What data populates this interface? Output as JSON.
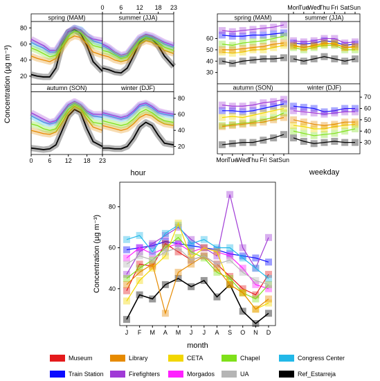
{
  "colors": {
    "Museum": "#e41a1c",
    "Library": "#e68a00",
    "CETA": "#f2d600",
    "Chapel": "#7fe01a",
    "Congress Center": "#22b8e8",
    "Train Station": "#0b0bff",
    "Firefighters": "#a03ad6",
    "Morgados": "#ff20ff",
    "UA": "#b5b5b5",
    "Ref_Estarreja": "#000000"
  },
  "legend": [
    "Museum",
    "Library",
    "CETA",
    "Chapel",
    "Congress Center",
    "Train Station",
    "Firefighters",
    "Morgados",
    "UA",
    "Ref_Estarreja"
  ],
  "chart_data": [
    {
      "id": "hour",
      "type": "line",
      "xlabel": "hour",
      "ylabel": "Concentration (µg m⁻³)",
      "x_ticks": [
        0,
        6,
        12,
        18,
        23
      ],
      "y_ticks": [
        20,
        40,
        60,
        80
      ],
      "ylim": [
        10,
        88
      ],
      "panels": [
        "spring (MAM)",
        "summer (JJA)",
        "autumn (SON)",
        "winter (DJF)"
      ],
      "x": [
        0,
        2,
        4,
        6,
        8,
        10,
        12,
        14,
        16,
        18,
        20,
        23
      ],
      "series": {
        "spring (MAM)": [
          {
            "name": "Ref_Estarreja",
            "values": [
              22,
              20,
              19,
              19,
              30,
              60,
              75,
              78,
              73,
              58,
              38,
              26
            ]
          },
          {
            "name": "Congress Center",
            "values": [
              62,
              58,
              55,
              50,
              50,
              62,
              74,
              80,
              78,
              70,
              64,
              60
            ]
          },
          {
            "name": "Firefighters",
            "values": [
              66,
              62,
              58,
              52,
              52,
              64,
              75,
              80,
              77,
              70,
              66,
              64
            ]
          },
          {
            "name": "Library",
            "values": [
              45,
              42,
              40,
              38,
              42,
              55,
              66,
              70,
              68,
              60,
              50,
              46
            ]
          },
          {
            "name": "Chapel",
            "values": [
              55,
              52,
              48,
              44,
              46,
              58,
              70,
              76,
              74,
              66,
              58,
              55
            ]
          }
        ],
        "summer (JJA)": [
          {
            "name": "Ref_Estarreja",
            "values": [
              30,
              28,
              25,
              24,
              30,
              45,
              62,
              68,
              66,
              58,
              45,
              32
            ]
          },
          {
            "name": "Congress Center",
            "values": [
              58,
              54,
              48,
              44,
              46,
              56,
              66,
              70,
              68,
              64,
              60,
              56
            ]
          },
          {
            "name": "Firefighters",
            "values": [
              60,
              56,
              50,
              46,
              48,
              58,
              68,
              72,
              70,
              66,
              62,
              58
            ]
          },
          {
            "name": "Library",
            "values": [
              46,
              44,
              40,
              38,
              40,
              50,
              60,
              64,
              62,
              58,
              52,
              48
            ]
          },
          {
            "name": "Chapel",
            "values": [
              52,
              50,
              46,
              42,
              44,
              54,
              64,
              68,
              66,
              62,
              56,
              52
            ]
          }
        ],
        "autumn (SON)": [
          {
            "name": "Ref_Estarreja",
            "values": [
              18,
              17,
              16,
              17,
              22,
              40,
              58,
              66,
              62,
              42,
              26,
              20
            ]
          },
          {
            "name": "Congress Center",
            "values": [
              58,
              54,
              50,
              48,
              50,
              60,
              70,
              74,
              70,
              62,
              58,
              56
            ]
          },
          {
            "name": "Firefighters",
            "values": [
              62,
              58,
              54,
              50,
              52,
              62,
              72,
              76,
              72,
              64,
              60,
              60
            ]
          },
          {
            "name": "Library",
            "values": [
              40,
              38,
              36,
              35,
              38,
              50,
              62,
              70,
              66,
              54,
              44,
              40
            ]
          },
          {
            "name": "Chapel",
            "values": [
              48,
              46,
              42,
              40,
              42,
              54,
              66,
              72,
              68,
              58,
              50,
              48
            ]
          }
        ],
        "winter (DJF)": [
          {
            "name": "Ref_Estarreja",
            "values": [
              18,
              18,
              17,
              17,
              20,
              30,
              44,
              50,
              46,
              34,
              24,
              22
            ]
          },
          {
            "name": "Congress Center",
            "values": [
              60,
              58,
              56,
              54,
              56,
              62,
              70,
              72,
              68,
              62,
              60,
              58
            ]
          },
          {
            "name": "Firefighters",
            "values": [
              62,
              60,
              58,
              56,
              58,
              64,
              72,
              74,
              70,
              64,
              62,
              60
            ]
          },
          {
            "name": "Library",
            "values": [
              46,
              44,
              42,
              40,
              42,
              48,
              56,
              60,
              58,
              52,
              48,
              46
            ]
          },
          {
            "name": "Chapel",
            "values": [
              52,
              50,
              48,
              46,
              48,
              54,
              62,
              66,
              62,
              56,
              52,
              50
            ]
          }
        ]
      }
    },
    {
      "id": "weekday",
      "type": "line",
      "xlabel": "weekday",
      "ylabel": "",
      "x_ticks": [
        "Mon",
        "Tue",
        "Wed",
        "Thu",
        "Fri",
        "Sat",
        "Sun"
      ],
      "y_ticks": [
        30,
        40,
        50,
        60,
        70
      ],
      "ylim": [
        20,
        75
      ],
      "panels": [
        "spring (MAM)",
        "summer (JJA)",
        "autumn (SON)",
        "winter (DJF)"
      ],
      "series": {
        "spring (MAM)": [
          {
            "name": "Ref_Estarreja",
            "values": [
              40,
              38,
              40,
              41,
              42,
              42,
              43
            ]
          },
          {
            "name": "Train Station",
            "values": [
              63,
              62,
              62,
              63,
              63,
              64,
              65
            ]
          },
          {
            "name": "Firefighters",
            "values": [
              67,
              66,
              67,
              68,
              69,
              70,
              72
            ]
          },
          {
            "name": "Chapel",
            "values": [
              55,
              54,
              56,
              57,
              58,
              60,
              62
            ]
          },
          {
            "name": "CETA",
            "values": [
              48,
              47,
              48,
              50,
              50,
              52,
              54
            ]
          },
          {
            "name": "Library",
            "values": [
              50,
              50,
              51,
              52,
              53,
              55,
              56
            ]
          }
        ],
        "summer (JJA)": [
          {
            "name": "Ref_Estarreja",
            "values": [
              42,
              40,
              42,
              44,
              42,
              40,
              42
            ]
          },
          {
            "name": "Train Station",
            "values": [
              56,
              55,
              56,
              58,
              57,
              54,
              55
            ]
          },
          {
            "name": "Firefighters",
            "values": [
              58,
              57,
              58,
              60,
              60,
              56,
              57
            ]
          },
          {
            "name": "Chapel",
            "values": [
              52,
              50,
              52,
              54,
              54,
              50,
              50
            ]
          },
          {
            "name": "CETA",
            "values": [
              53,
              52,
              53,
              55,
              56,
              52,
              52
            ]
          },
          {
            "name": "Library",
            "values": [
              54,
              52,
              54,
              56,
              55,
              52,
              53
            ]
          }
        ],
        "autumn (SON)": [
          {
            "name": "Ref_Estarreja",
            "values": [
              28,
              29,
              30,
              30,
              32,
              34,
              37
            ]
          },
          {
            "name": "Train Station",
            "values": [
              58,
              58,
              57,
              58,
              60,
              62,
              64
            ]
          },
          {
            "name": "Firefighters",
            "values": [
              63,
              62,
              62,
              63,
              65,
              66,
              68
            ]
          },
          {
            "name": "Chapel",
            "values": [
              45,
              46,
              47,
              48,
              50,
              52,
              56
            ]
          },
          {
            "name": "CETA",
            "values": [
              52,
              53,
              52,
              54,
              56,
              58,
              60
            ]
          },
          {
            "name": "Library",
            "values": [
              44,
              45,
              46,
              47,
              48,
              50,
              52
            ]
          }
        ],
        "winter (DJF)": [
          {
            "name": "Ref_Estarreja",
            "values": [
              34,
              31,
              29,
              30,
              31,
              30,
              30
            ]
          },
          {
            "name": "Train Station",
            "values": [
              62,
              61,
              60,
              57,
              58,
              60,
              60
            ]
          },
          {
            "name": "Firefighters",
            "values": [
              58,
              57,
              56,
              55,
              56,
              57,
              57
            ]
          },
          {
            "name": "Chapel",
            "values": [
              40,
              38,
              36,
              37,
              38,
              40,
              42
            ]
          },
          {
            "name": "CETA",
            "values": [
              45,
              44,
              42,
              42,
              44,
              45,
              46
            ]
          },
          {
            "name": "Library",
            "values": [
              50,
              48,
              46,
              45,
              46,
              48,
              48
            ]
          }
        ]
      }
    },
    {
      "id": "month",
      "type": "line",
      "xlabel": "month",
      "ylabel": "Concentration (µg m⁻³)",
      "categories": [
        "J",
        "F",
        "M",
        "A",
        "M",
        "J",
        "J",
        "A",
        "S",
        "O",
        "N",
        "D"
      ],
      "y_ticks": [
        40,
        60,
        80
      ],
      "ylim": [
        22,
        92
      ],
      "series": [
        {
          "name": "Ref_Estarreja",
          "values": [
            25,
            37,
            35,
            42,
            45,
            41,
            44,
            36,
            42,
            29,
            23,
            28
          ]
        },
        {
          "name": "Train Station",
          "values": [
            59,
            60,
            61,
            63,
            62,
            61,
            60,
            59,
            57,
            56,
            55,
            53
          ]
        },
        {
          "name": "Firefighters",
          "values": [
            47,
            58,
            62,
            66,
            70,
            64,
            60,
            56,
            86,
            60,
            50,
            65
          ]
        },
        {
          "name": "Morgados",
          "values": [
            55,
            60,
            57,
            60,
            62,
            58,
            60,
            58,
            56,
            50,
            42,
            40
          ]
        },
        {
          "name": "Museum",
          "values": [
            39,
            52,
            51,
            62,
            58,
            54,
            56,
            52,
            46,
            40,
            37,
            47
          ]
        },
        {
          "name": "Congress Center",
          "values": [
            64,
            66,
            58,
            67,
            71,
            62,
            64,
            60,
            60,
            55,
            50,
            45
          ]
        },
        {
          "name": "Chapel",
          "values": [
            45,
            50,
            54,
            60,
            65,
            58,
            55,
            48,
            45,
            38,
            35,
            42
          ]
        },
        {
          "name": "CETA",
          "values": [
            34,
            44,
            50,
            56,
            72,
            55,
            60,
            58,
            42,
            38,
            30,
            33
          ]
        },
        {
          "name": "Library",
          "values": [
            42,
            48,
            52,
            28,
            48,
            52,
            56,
            50,
            42,
            38,
            30,
            35
          ]
        },
        {
          "name": "UA",
          "values": [
            52,
            56,
            54,
            58,
            60,
            54,
            56,
            52,
            54,
            48,
            44,
            42
          ]
        }
      ]
    }
  ]
}
